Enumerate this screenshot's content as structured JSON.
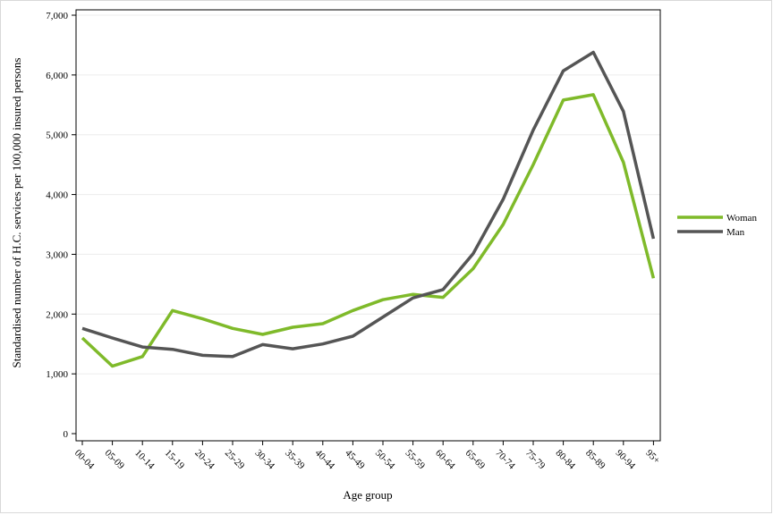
{
  "chart_data": {
    "type": "line",
    "title": "",
    "xlabel": "Age group",
    "ylabel": "Standardised number of H.C. services per 100,000 insured persons",
    "categories": [
      "00-04",
      "05-09",
      "10-14",
      "15-19",
      "20-24",
      "25-29",
      "30-34",
      "35-39",
      "40-44",
      "45-49",
      "50-54",
      "55-59",
      "60-64",
      "65-69",
      "70-74",
      "75-79",
      "80-84",
      "85-89",
      "90-94",
      "95+"
    ],
    "ylim": [
      0,
      7000
    ],
    "yticks": [
      0,
      1000,
      2000,
      3000,
      4000,
      5000,
      6000,
      7000
    ],
    "ytick_labels": [
      "0",
      "1,000",
      "2,000",
      "3,000",
      "4,000",
      "5,000",
      "6,000",
      "7,000"
    ],
    "grid": true,
    "legend_position": "right",
    "series": [
      {
        "name": "Woman",
        "color": "#7fba2a",
        "values": [
          1600,
          1130,
          1290,
          2060,
          1920,
          1760,
          1660,
          1780,
          1840,
          2060,
          2240,
          2330,
          2280,
          2760,
          3500,
          4500,
          5580,
          5670,
          4540,
          2600
        ]
      },
      {
        "name": "Man",
        "color": "#555555",
        "values": [
          1760,
          1600,
          1450,
          1410,
          1310,
          1290,
          1490,
          1420,
          1500,
          1630,
          1950,
          2270,
          2410,
          3010,
          3920,
          5080,
          6070,
          6380,
          5390,
          3260
        ]
      }
    ]
  }
}
